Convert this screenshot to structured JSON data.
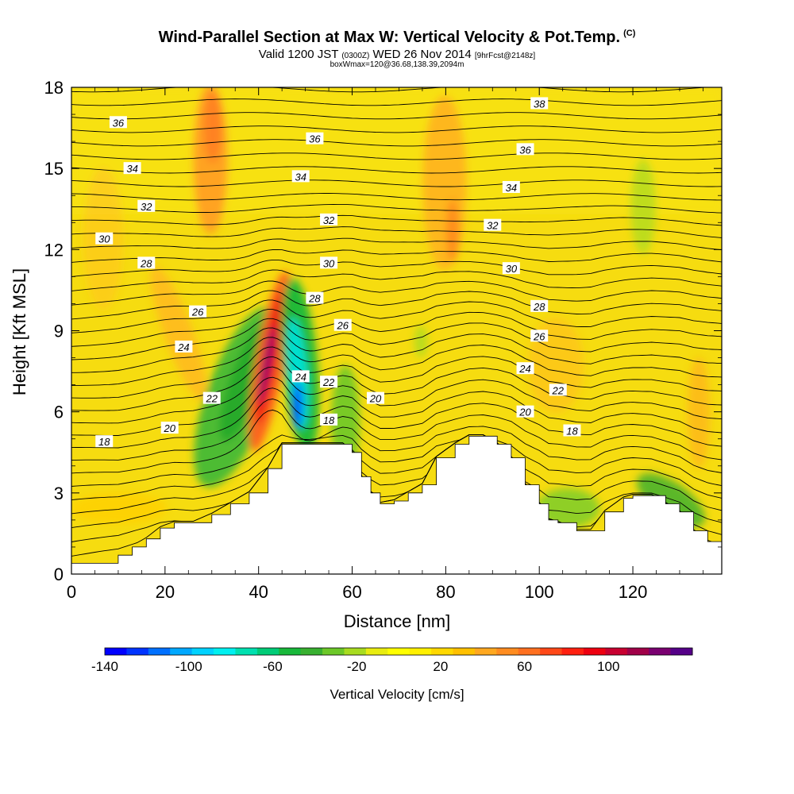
{
  "titles": {
    "main": "Wind-Parallel Section at Max W: Vertical Velocity & Pot.Temp.",
    "copyright": "(C)",
    "valid_a": "Valid 1200 JST",
    "valid_small": "(0300Z)",
    "valid_b": "WED 26 Nov 2014",
    "fcst": "[9hrFcst@2148z]",
    "box": "boxWmax=120@36.68,138.39,2094m"
  },
  "chart_data": {
    "type": "heatmap",
    "xlabel": "Distance [nm]",
    "ylabel": "Height [Kft MSL]",
    "xlim": [
      0,
      139
    ],
    "ylim": [
      0,
      18
    ],
    "x_ticks": [
      0,
      20,
      40,
      60,
      80,
      100,
      120
    ],
    "y_ticks": [
      0,
      3,
      6,
      9,
      12,
      15,
      18
    ],
    "colorbar": {
      "label": "Vertical Velocity [cm/s]",
      "min": -140,
      "max": 140,
      "ticks": [
        -140,
        -100,
        -60,
        -20,
        20,
        60,
        100
      ],
      "colors": [
        "#0000ff",
        "#0033ff",
        "#0070ff",
        "#00a8ff",
        "#00d2ff",
        "#00f0f0",
        "#00e0b0",
        "#00cc77",
        "#18b83a",
        "#38b030",
        "#6cc828",
        "#a8dc20",
        "#e8ec10",
        "#ffff00",
        "#fff000",
        "#ffd800",
        "#ffc000",
        "#ffa820",
        "#ff8c20",
        "#ff7020",
        "#ff4818",
        "#ff2010",
        "#ee0010",
        "#c80030",
        "#a00048",
        "#7a0070",
        "#550088"
      ]
    },
    "terrain": [
      [
        0,
        0.4
      ],
      [
        10,
        0.7
      ],
      [
        13,
        1.0
      ],
      [
        16,
        1.3
      ],
      [
        19,
        1.7
      ],
      [
        22,
        1.9
      ],
      [
        26,
        1.9
      ],
      [
        30,
        2.2
      ],
      [
        34,
        2.6
      ],
      [
        38,
        3.0
      ],
      [
        42,
        3.9
      ],
      [
        45,
        4.8
      ],
      [
        50,
        4.8
      ],
      [
        55,
        4.8
      ],
      [
        58,
        4.8
      ],
      [
        60,
        4.5
      ],
      [
        62,
        3.6
      ],
      [
        64,
        3.0
      ],
      [
        66,
        2.6
      ],
      [
        69,
        2.7
      ],
      [
        72,
        3.0
      ],
      [
        75,
        3.3
      ],
      [
        78,
        4.3
      ],
      [
        82,
        4.8
      ],
      [
        85,
        5.1
      ],
      [
        88,
        5.1
      ],
      [
        91,
        4.8
      ],
      [
        94,
        4.3
      ],
      [
        97,
        3.3
      ],
      [
        100,
        2.6
      ],
      [
        102,
        2.0
      ],
      [
        104,
        1.9
      ],
      [
        108,
        1.6
      ],
      [
        111,
        1.6
      ],
      [
        114,
        2.3
      ],
      [
        118,
        2.8
      ],
      [
        120,
        2.9
      ],
      [
        124,
        2.9
      ],
      [
        127,
        2.6
      ],
      [
        130,
        2.3
      ],
      [
        133,
        1.6
      ],
      [
        136,
        1.2
      ],
      [
        139,
        1.0
      ]
    ],
    "theta_labels": [
      {
        "text": "36",
        "x": 10,
        "y": 16.7
      },
      {
        "text": "36",
        "x": 52,
        "y": 16.1
      },
      {
        "text": "36",
        "x": 97,
        "y": 15.7
      },
      {
        "text": "38",
        "x": 100,
        "y": 17.4
      },
      {
        "text": "34",
        "x": 13,
        "y": 15.0
      },
      {
        "text": "34",
        "x": 49,
        "y": 14.7
      },
      {
        "text": "34",
        "x": 94,
        "y": 14.3
      },
      {
        "text": "32",
        "x": 16,
        "y": 13.6
      },
      {
        "text": "32",
        "x": 55,
        "y": 13.1
      },
      {
        "text": "32",
        "x": 90,
        "y": 12.9
      },
      {
        "text": "30",
        "x": 7,
        "y": 12.4
      },
      {
        "text": "30",
        "x": 55,
        "y": 11.5
      },
      {
        "text": "30",
        "x": 94,
        "y": 11.3
      },
      {
        "text": "28",
        "x": 16,
        "y": 11.5
      },
      {
        "text": "28",
        "x": 52,
        "y": 10.2
      },
      {
        "text": "28",
        "x": 100,
        "y": 9.9
      },
      {
        "text": "26",
        "x": 27,
        "y": 9.7
      },
      {
        "text": "26",
        "x": 58,
        "y": 9.2
      },
      {
        "text": "26",
        "x": 100,
        "y": 8.8
      },
      {
        "text": "24",
        "x": 24,
        "y": 8.4
      },
      {
        "text": "24",
        "x": 49,
        "y": 7.3
      },
      {
        "text": "24",
        "x": 97,
        "y": 7.6
      },
      {
        "text": "22",
        "x": 30,
        "y": 6.5
      },
      {
        "text": "22",
        "x": 55,
        "y": 7.1
      },
      {
        "text": "22",
        "x": 104,
        "y": 6.8
      },
      {
        "text": "20",
        "x": 21,
        "y": 5.4
      },
      {
        "text": "20",
        "x": 65,
        "y": 6.5
      },
      {
        "text": "20",
        "x": 97,
        "y": 6.0
      },
      {
        "text": "18",
        "x": 7,
        "y": 4.9
      },
      {
        "text": "18",
        "x": 55,
        "y": 5.7
      },
      {
        "text": "18",
        "x": 107,
        "y": 5.3
      }
    ]
  }
}
